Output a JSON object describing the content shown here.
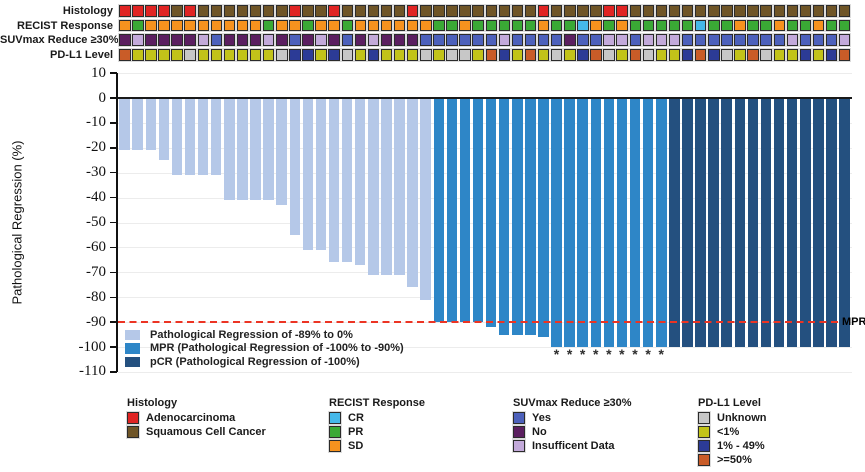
{
  "figure": {
    "y_axis": {
      "title": "Pathological Regression (%)",
      "ticks": [
        10,
        0,
        -10,
        -20,
        -30,
        -40,
        -50,
        -60,
        -70,
        -80,
        -90,
        -100,
        -110
      ]
    },
    "mpr_line": {
      "value": -90,
      "label": "MPR",
      "color": "#ec3423"
    },
    "bar_legend": [
      {
        "key": "regression",
        "label": "Pathological Regression of -89% to 0%",
        "color": "#b5c8e8"
      },
      {
        "key": "mpr",
        "label": "MPR (Pathological Regression of -100% to -90%)",
        "color": "#2e86c7"
      },
      {
        "key": "pcr",
        "label": "pCR (Pathological Regression of -100%)",
        "color": "#24507f"
      }
    ]
  },
  "chart_data": {
    "type": "bar",
    "title": "",
    "xlabel": "",
    "ylabel": "Pathological Regression (%)",
    "ylim": [
      -110,
      10
    ],
    "grid": true,
    "threshold_line": -90,
    "values": [
      -21,
      -21,
      -21,
      -25,
      -31,
      -31,
      -31,
      -31,
      -41,
      -41,
      -41,
      -41,
      -43,
      -55,
      -61,
      -61,
      -66,
      -66,
      -67,
      -71,
      -71,
      -71,
      -76,
      -81,
      -90,
      -90,
      -90,
      -90,
      -92,
      -95,
      -95,
      -95,
      -96,
      -100,
      -100,
      -100,
      -100,
      -100,
      -100,
      -100,
      -100,
      -100,
      -100,
      -100,
      -100,
      -100,
      -100,
      -100,
      -100,
      -100,
      -100,
      -100,
      -100,
      -100,
      -100,
      -100
    ],
    "groups": [
      "regression",
      "regression",
      "regression",
      "regression",
      "regression",
      "regression",
      "regression",
      "regression",
      "regression",
      "regression",
      "regression",
      "regression",
      "regression",
      "regression",
      "regression",
      "regression",
      "regression",
      "regression",
      "regression",
      "regression",
      "regression",
      "regression",
      "regression",
      "regression",
      "mpr",
      "mpr",
      "mpr",
      "mpr",
      "mpr",
      "mpr",
      "mpr",
      "mpr",
      "mpr",
      "mpr",
      "mpr",
      "mpr",
      "mpr",
      "mpr",
      "mpr",
      "mpr",
      "mpr",
      "mpr",
      "pcr",
      "pcr",
      "pcr",
      "pcr",
      "pcr",
      "pcr",
      "pcr",
      "pcr",
      "pcr",
      "pcr",
      "pcr",
      "pcr",
      "pcr",
      "pcr"
    ],
    "asterisk_columns": [
      33,
      34,
      35,
      36,
      37,
      38,
      39,
      40,
      41
    ],
    "asterisk_glyph": "*"
  },
  "tracks": {
    "rows": [
      {
        "label": "Histology",
        "categories": [
          "Adenocarcinoma",
          "Adenocarcinoma",
          "Adenocarcinoma",
          "Adenocarcinoma",
          "Squamous Cell Cancer",
          "Adenocarcinoma",
          "Squamous Cell Cancer",
          "Squamous Cell Cancer",
          "Squamous Cell Cancer",
          "Squamous Cell Cancer",
          "Squamous Cell Cancer",
          "Squamous Cell Cancer",
          "Squamous Cell Cancer",
          "Adenocarcinoma",
          "Squamous Cell Cancer",
          "Squamous Cell Cancer",
          "Adenocarcinoma",
          "Squamous Cell Cancer",
          "Squamous Cell Cancer",
          "Squamous Cell Cancer",
          "Squamous Cell Cancer",
          "Squamous Cell Cancer",
          "Adenocarcinoma",
          "Squamous Cell Cancer",
          "Squamous Cell Cancer",
          "Squamous Cell Cancer",
          "Squamous Cell Cancer",
          "Squamous Cell Cancer",
          "Squamous Cell Cancer",
          "Squamous Cell Cancer",
          "Squamous Cell Cancer",
          "Squamous Cell Cancer",
          "Adenocarcinoma",
          "Squamous Cell Cancer",
          "Squamous Cell Cancer",
          "Squamous Cell Cancer",
          "Squamous Cell Cancer",
          "Adenocarcinoma",
          "Adenocarcinoma",
          "Squamous Cell Cancer",
          "Squamous Cell Cancer",
          "Squamous Cell Cancer",
          "Squamous Cell Cancer",
          "Squamous Cell Cancer",
          "Squamous Cell Cancer",
          "Squamous Cell Cancer",
          "Squamous Cell Cancer",
          "Squamous Cell Cancer",
          "Squamous Cell Cancer",
          "Squamous Cell Cancer",
          "Squamous Cell Cancer",
          "Squamous Cell Cancer",
          "Squamous Cell Cancer",
          "Squamous Cell Cancer",
          "Squamous Cell Cancer",
          "Squamous Cell Cancer"
        ]
      },
      {
        "label": "RECIST Response",
        "categories": [
          "SD",
          "PR",
          "SD",
          "SD",
          "SD",
          "SD",
          "SD",
          "SD",
          "SD",
          "SD",
          "SD",
          "PR",
          "SD",
          "SD",
          "PR",
          "SD",
          "SD",
          "PR",
          "SD",
          "SD",
          "SD",
          "SD",
          "SD",
          "SD",
          "PR",
          "PR",
          "SD",
          "PR",
          "PR",
          "PR",
          "PR",
          "PR",
          "SD",
          "PR",
          "PR",
          "CR",
          "SD",
          "PR",
          "SD",
          "PR",
          "PR",
          "PR",
          "PR",
          "PR",
          "CR",
          "PR",
          "PR",
          "SD",
          "PR",
          "PR",
          "SD",
          "PR",
          "PR",
          "SD",
          "PR",
          "PR"
        ]
      },
      {
        "label": "SUVmax Reduce ≥30%",
        "categories": [
          "No",
          "Insufficent Data",
          "No",
          "No",
          "No",
          "No",
          "Insufficent Data",
          "Yes",
          "No",
          "No",
          "No",
          "Insufficent Data",
          "No",
          "Yes",
          "No",
          "Insufficent Data",
          "No",
          "Yes",
          "No",
          "Insufficent Data",
          "No",
          "No",
          "No",
          "Yes",
          "Yes",
          "Yes",
          "Yes",
          "Yes",
          "Yes",
          "Insufficent Data",
          "Yes",
          "Yes",
          "Yes",
          "Yes",
          "No",
          "Yes",
          "Yes",
          "Insufficent Data",
          "Insufficent Data",
          "Yes",
          "Insufficent Data",
          "Insufficent Data",
          "Insufficent Data",
          "Yes",
          "Yes",
          "Yes",
          "Yes",
          "Yes",
          "Yes",
          "Yes",
          "Yes",
          "Insufficent Data",
          "Yes",
          "Yes",
          "Yes",
          "Insufficent Data"
        ]
      },
      {
        "label": "PD-L1 Level",
        "categories": [
          ">=50%",
          "<1%",
          "<1%",
          "<1%",
          "<1%",
          "Unknown",
          "<1%",
          "<1%",
          "<1%",
          "<1%",
          "<1%",
          "<1%",
          "Unknown",
          "1% - 49%",
          "1% - 49%",
          "<1%",
          "1% - 49%",
          "Unknown",
          "<1%",
          "1% - 49%",
          "<1%",
          "<1%",
          "<1%",
          "Unknown",
          "<1%",
          "Unknown",
          "Unknown",
          "<1%",
          ">=50%",
          "1% - 49%",
          "<1%",
          ">=50%",
          "<1%",
          "Unknown",
          "<1%",
          "1% - 49%",
          ">=50%",
          "Unknown",
          "<1%",
          ">=50%",
          "Unknown",
          "<1%",
          "<1%",
          "1% - 49%",
          ">=50%",
          "1% - 49%",
          "Unknown",
          "<1%",
          ">=50%",
          "Unknown",
          "<1%",
          "<1%",
          "1% - 49%",
          "<1%",
          "1% - 49%",
          ">=50%"
        ]
      }
    ]
  },
  "legends": [
    {
      "title": "Histology",
      "items": [
        {
          "label": "Adenocarcinoma",
          "color": "#e02423"
        },
        {
          "label": "Squamous Cell Cancer",
          "color": "#6f5527"
        }
      ]
    },
    {
      "title": "RECIST Response",
      "items": [
        {
          "label": "CR",
          "color": "#45b8e9"
        },
        {
          "label": "PR",
          "color": "#3aa935"
        },
        {
          "label": "SD",
          "color": "#f6921e"
        }
      ]
    },
    {
      "title": "SUVmax Reduce ≥30%",
      "items": [
        {
          "label": "Yes",
          "color": "#4d61bb"
        },
        {
          "label": "No",
          "color": "#5b1f60"
        },
        {
          "label": "Insufficent Data",
          "color": "#c3aada"
        }
      ]
    },
    {
      "title": "PD-L1 Level",
      "items": [
        {
          "label": "Unknown",
          "color": "#c7c7c7"
        },
        {
          "label": "<1%",
          "color": "#c2c319"
        },
        {
          "label": "1% - 49%",
          "color": "#2c3b96"
        },
        {
          "label": ">=50%",
          "color": "#c95c28"
        }
      ]
    }
  ]
}
